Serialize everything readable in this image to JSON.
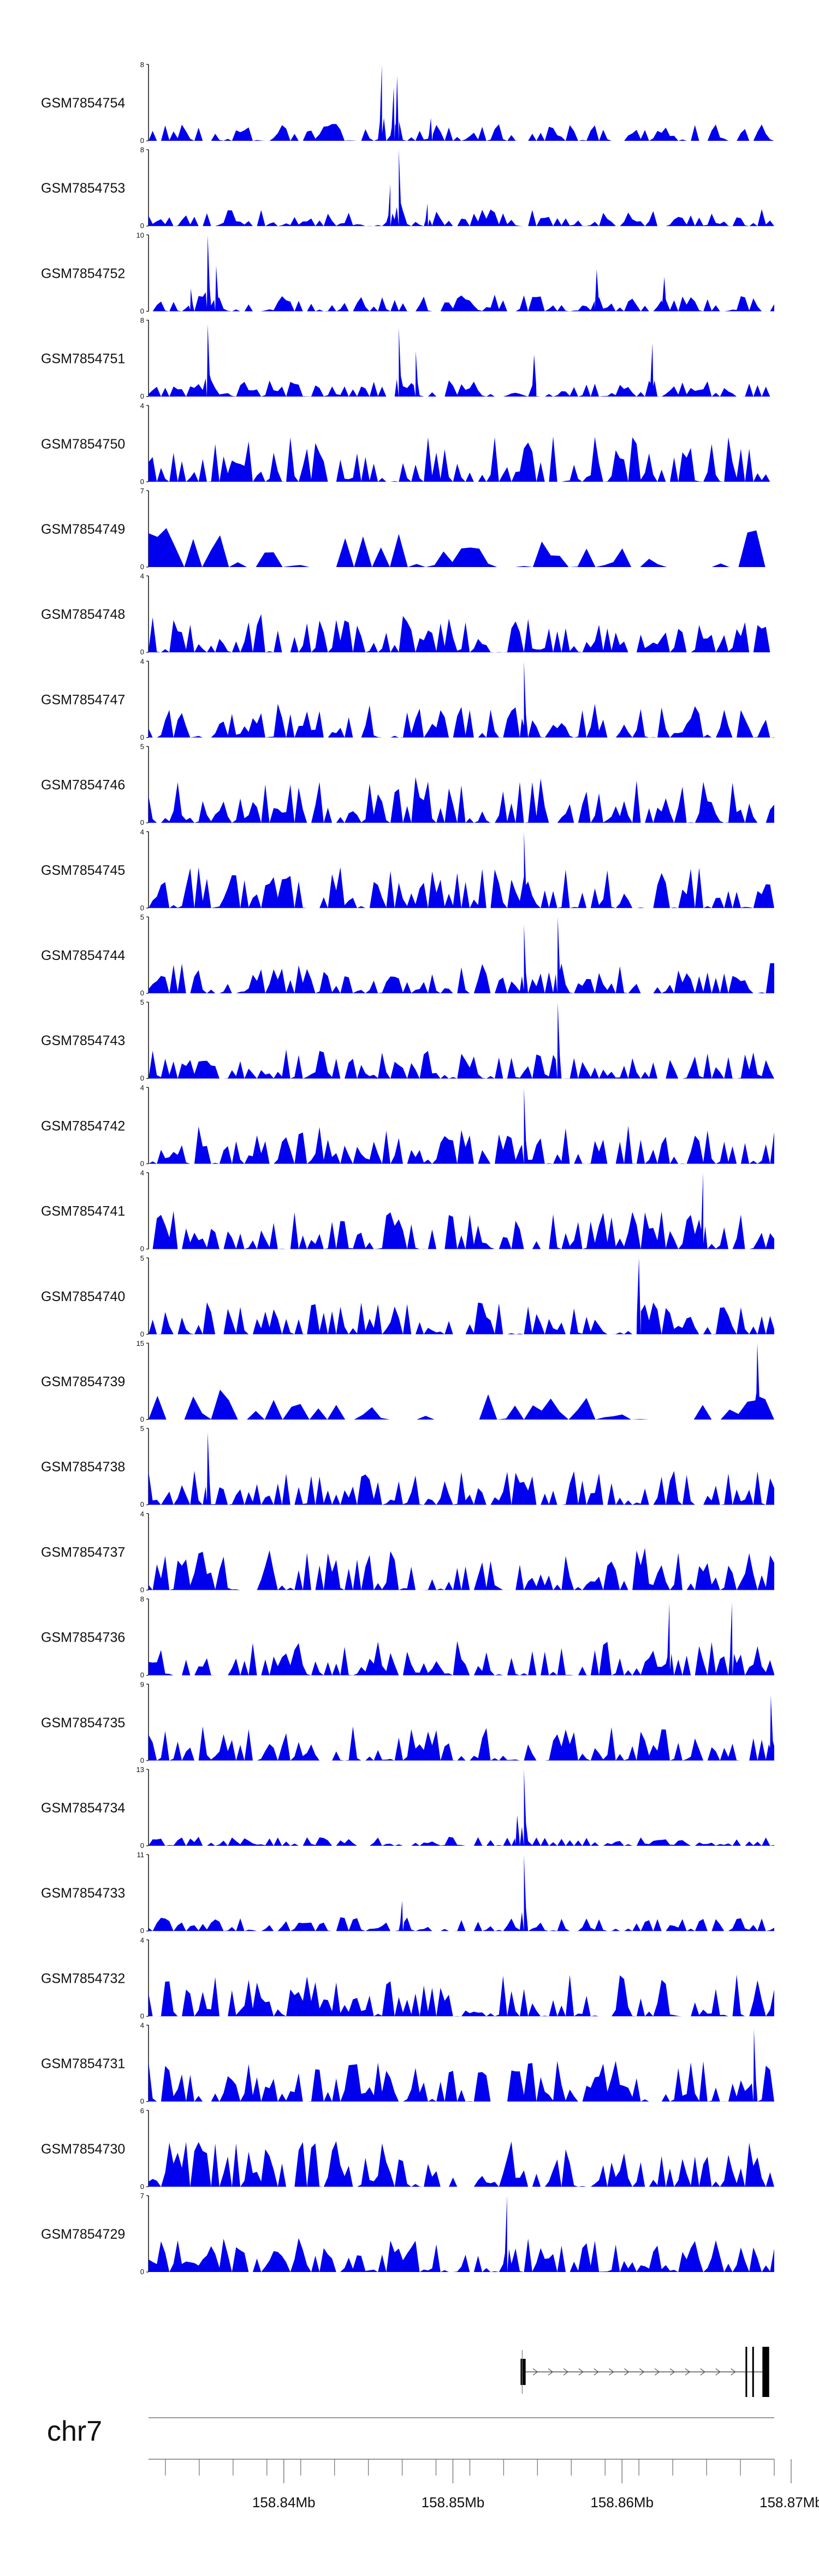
{
  "chart_data": {
    "type": "area",
    "chromosome": "chr7",
    "xlim": [
      158.832,
      158.869
    ],
    "x_ticks": [
      "158.84Mb",
      "158.85Mb",
      "158.86Mb",
      "158.87Mb"
    ],
    "x_tick_values": [
      158.84,
      158.85,
      158.86,
      158.87
    ],
    "colors": {
      "signal": "#0000ee",
      "axis": "#000000",
      "ruler": "#777777"
    },
    "tracks": [
      {
        "name": "GSM7854754",
        "ymax": "8",
        "peaks": [
          [
            158.8458,
            1.0
          ],
          [
            158.8465,
            0.7
          ],
          [
            158.8467,
            0.85
          ],
          [
            158.8487,
            0.3
          ]
        ],
        "base": 0.22
      },
      {
        "name": "GSM7854753",
        "ymax": "8",
        "peaks": [
          [
            158.8468,
            1.0
          ],
          [
            158.8463,
            0.55
          ],
          [
            158.8485,
            0.3
          ]
        ],
        "base": 0.22
      },
      {
        "name": "GSM7854752",
        "ymax": "10",
        "peaks": [
          [
            158.8355,
            1.0
          ],
          [
            158.836,
            0.6
          ],
          [
            158.8345,
            0.3
          ],
          [
            158.8585,
            0.55
          ],
          [
            158.8625,
            0.45
          ]
        ],
        "base": 0.22
      },
      {
        "name": "GSM7854751",
        "ymax": "8",
        "peaks": [
          [
            158.8355,
            0.95
          ],
          [
            158.8468,
            0.9
          ],
          [
            158.8478,
            0.6
          ],
          [
            158.8548,
            0.55
          ],
          [
            158.8618,
            0.7
          ]
        ],
        "base": 0.22
      },
      {
        "name": "GSM7854750",
        "ymax": "4",
        "peaks": [],
        "base": 0.6
      },
      {
        "name": "GSM7854749",
        "ymax": "7",
        "peaks": [],
        "base": 0.55,
        "sparse": true
      },
      {
        "name": "GSM7854748",
        "ymax": "4",
        "peaks": [],
        "base": 0.5
      },
      {
        "name": "GSM7854747",
        "ymax": "4",
        "peaks": [
          [
            158.8542,
            1.0
          ]
        ],
        "base": 0.45
      },
      {
        "name": "GSM7854746",
        "ymax": "5",
        "peaks": [],
        "base": 0.6
      },
      {
        "name": "GSM7854745",
        "ymax": "4",
        "peaks": [
          [
            158.8542,
            1.0
          ]
        ],
        "base": 0.55
      },
      {
        "name": "GSM7854744",
        "ymax": "5",
        "peaks": [
          [
            158.8562,
            1.0
          ],
          [
            158.8542,
            0.9
          ]
        ],
        "base": 0.4
      },
      {
        "name": "GSM7854743",
        "ymax": "5",
        "peaks": [
          [
            158.8562,
            1.0
          ]
        ],
        "base": 0.38
      },
      {
        "name": "GSM7854742",
        "ymax": "4",
        "peaks": [
          [
            158.8542,
            1.0
          ]
        ],
        "base": 0.5
      },
      {
        "name": "GSM7854741",
        "ymax": "4",
        "peaks": [
          [
            158.8648,
            1.0
          ]
        ],
        "base": 0.5
      },
      {
        "name": "GSM7854740",
        "ymax": "5",
        "peaks": [
          [
            158.861,
            1.0
          ]
        ],
        "base": 0.45
      },
      {
        "name": "GSM7854739",
        "ymax": "15",
        "peaks": [
          [
            158.868,
            1.0
          ]
        ],
        "base": 0.45,
        "sparse": true
      },
      {
        "name": "GSM7854738",
        "ymax": "5",
        "peaks": [
          [
            158.8355,
            0.95
          ]
        ],
        "base": 0.45
      },
      {
        "name": "GSM7854737",
        "ymax": "4",
        "peaks": [],
        "base": 0.55
      },
      {
        "name": "GSM7854736",
        "ymax": "8",
        "peaks": [
          [
            158.8628,
            0.95
          ],
          [
            158.8665,
            0.95
          ]
        ],
        "base": 0.45
      },
      {
        "name": "GSM7854735",
        "ymax": "9",
        "peaks": [
          [
            158.8688,
            0.85
          ]
        ],
        "base": 0.45
      },
      {
        "name": "GSM7854734",
        "ymax": "13",
        "peaks": [
          [
            158.8542,
            1.0
          ],
          [
            158.8538,
            0.4
          ]
        ],
        "base": 0.12
      },
      {
        "name": "GSM7854733",
        "ymax": "11",
        "peaks": [
          [
            158.8542,
            1.0
          ],
          [
            158.847,
            0.4
          ]
        ],
        "base": 0.18
      },
      {
        "name": "GSM7854732",
        "ymax": "4",
        "peaks": [],
        "base": 0.55
      },
      {
        "name": "GSM7854731",
        "ymax": "4",
        "peaks": [
          [
            158.8678,
            0.95
          ]
        ],
        "base": 0.55
      },
      {
        "name": "GSM7854730",
        "ymax": "6",
        "peaks": [],
        "base": 0.6
      },
      {
        "name": "GSM7854729",
        "ymax": "7",
        "peaks": [
          [
            158.8532,
            1.0
          ]
        ],
        "base": 0.45
      }
    ],
    "gene_model": {
      "strand": "+",
      "exons": [
        [
          158.854,
          158.8543
        ],
        [
          158.8673,
          158.8674
        ],
        [
          158.8677,
          158.8678
        ],
        [
          158.8683,
          158.8687
        ]
      ],
      "intron": [
        158.8543,
        158.8683
      ]
    }
  }
}
